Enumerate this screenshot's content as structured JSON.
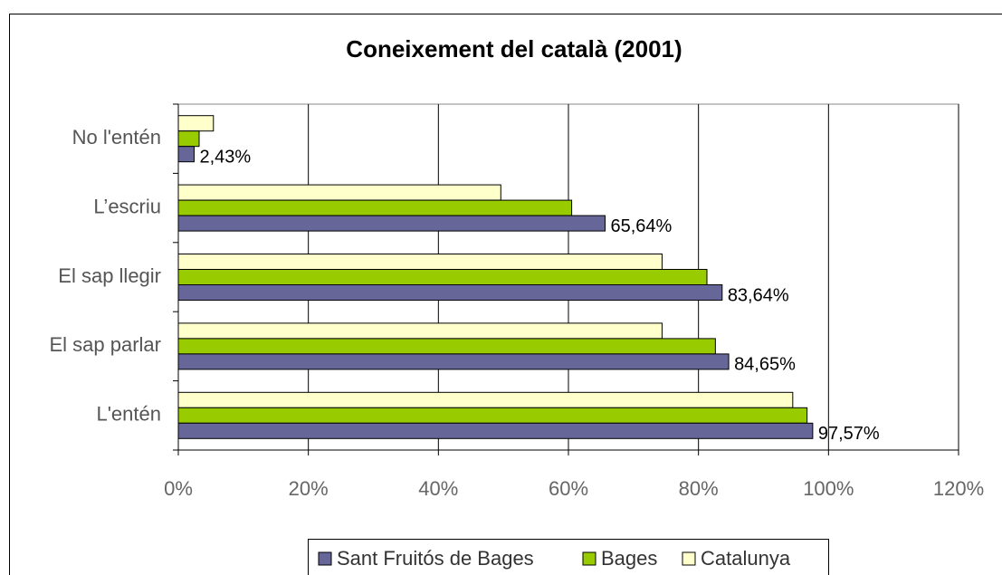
{
  "chart_data": {
    "type": "hbar",
    "title": "Coneixement del català (2001)",
    "categories": [
      "No l'entén",
      "L’escriu",
      "El sap llegir",
      "El sap parlar",
      "L'entén"
    ],
    "series": [
      {
        "name": "Catalunya",
        "color": "#ffffcc",
        "values": [
          5.4,
          49.6,
          74.4,
          74.4,
          94.5
        ]
      },
      {
        "name": "Bages",
        "color": "#99cc00",
        "values": [
          3.2,
          60.5,
          81.3,
          82.6,
          96.7
        ]
      },
      {
        "name": "Sant Fruitós de Bages",
        "color": "#666699",
        "values": [
          2.43,
          65.64,
          83.64,
          84.65,
          97.57
        ],
        "value_labels": [
          "2,43%",
          "65,64%",
          "83,64%",
          "84,65%",
          "97,57%"
        ]
      }
    ],
    "xlim": [
      0,
      120
    ],
    "xticks": [
      {
        "value": 0,
        "label": "0%"
      },
      {
        "value": 20,
        "label": "20%"
      },
      {
        "value": 40,
        "label": "40%"
      },
      {
        "value": 60,
        "label": "60%"
      },
      {
        "value": 80,
        "label": "80%"
      },
      {
        "value": 100,
        "label": "100%"
      },
      {
        "value": 120,
        "label": "120%"
      }
    ],
    "grid": true,
    "legend": "bottom"
  }
}
